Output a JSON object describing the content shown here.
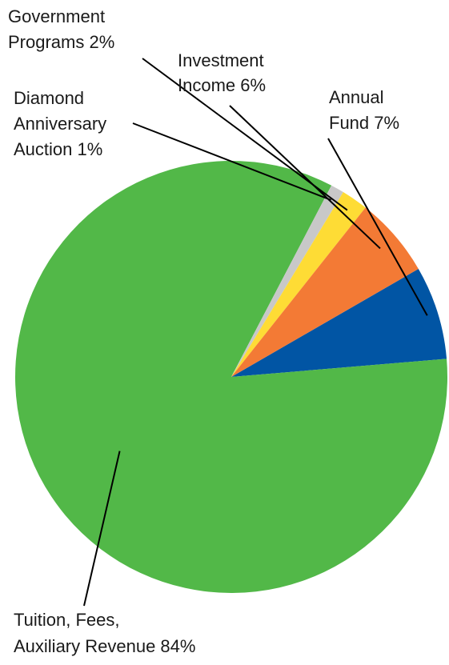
{
  "chart_data": {
    "type": "pie",
    "start_angle_deg": -30,
    "slices": [
      {
        "key": "annual_fund",
        "label_lines": [
          "Annual",
          "Fund 7%"
        ],
        "value": 7,
        "color": "#0155A4"
      },
      {
        "key": "tuition",
        "label_lines": [
          "Tuition, Fees,",
          "Auxiliary Revenue 84%"
        ],
        "value": 84,
        "color": "#52B848"
      },
      {
        "key": "diamond",
        "label_lines": [
          "Diamond",
          "Anniversary",
          "Auction 1%"
        ],
        "value": 1,
        "color": "#C8C8C8"
      },
      {
        "key": "government",
        "label_lines": [
          "Government",
          "Programs 2%"
        ],
        "value": 2,
        "color": "#FEDC35"
      },
      {
        "key": "investment",
        "label_lines": [
          "Investment",
          "Income 6%"
        ],
        "value": 6,
        "color": "#F37A35"
      }
    ]
  }
}
